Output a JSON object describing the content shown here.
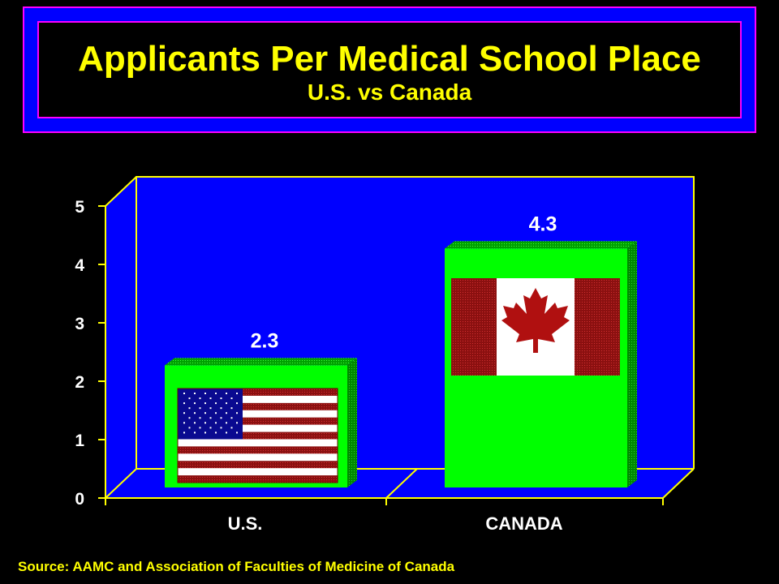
{
  "chart_data": {
    "type": "bar",
    "title": "Applicants Per Medical School Place",
    "subtitle": "U.S. vs Canada",
    "categories": [
      "U.S.",
      "CANADA"
    ],
    "values": [
      2.3,
      4.3
    ],
    "data_labels": [
      "2.3",
      "4.3"
    ],
    "ylim": [
      0,
      5
    ],
    "yticks": [
      0,
      1,
      2,
      3,
      4,
      5
    ],
    "ytick_labels": [
      "0",
      "1",
      "2",
      "3",
      "4",
      "5"
    ],
    "xlabel": "",
    "ylabel": "",
    "bar_images": [
      "us-flag",
      "canada-flag"
    ],
    "grid": false,
    "legend": "none",
    "colors": {
      "background": "#000000",
      "plot_background": "#0000ff",
      "bar": "#00ff00",
      "axis": "#ffff00",
      "title": "#ffff00",
      "labels": "#ffffff"
    }
  },
  "source": "Source: AAMC and Association of Faculties of Medicine of Canada"
}
